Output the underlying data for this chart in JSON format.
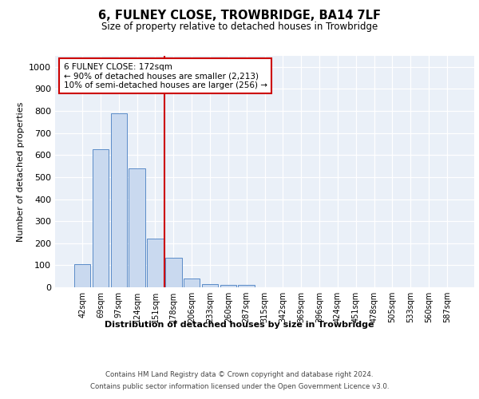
{
  "title": "6, FULNEY CLOSE, TROWBRIDGE, BA14 7LF",
  "subtitle": "Size of property relative to detached houses in Trowbridge",
  "xlabel": "Distribution of detached houses by size in Trowbridge",
  "ylabel": "Number of detached properties",
  "categories": [
    "42sqm",
    "69sqm",
    "97sqm",
    "124sqm",
    "151sqm",
    "178sqm",
    "206sqm",
    "233sqm",
    "260sqm",
    "287sqm",
    "315sqm",
    "342sqm",
    "369sqm",
    "396sqm",
    "424sqm",
    "451sqm",
    "478sqm",
    "505sqm",
    "533sqm",
    "560sqm",
    "587sqm"
  ],
  "values": [
    105,
    625,
    790,
    540,
    220,
    135,
    40,
    15,
    10,
    10,
    0,
    0,
    0,
    0,
    0,
    0,
    0,
    0,
    0,
    0,
    0
  ],
  "bar_color": "#c9d9ef",
  "bar_edge_color": "#5b8cc8",
  "vline_color": "#cc0000",
  "annotation_text": "6 FULNEY CLOSE: 172sqm\n← 90% of detached houses are smaller (2,213)\n10% of semi-detached houses are larger (256) →",
  "annotation_box_color": "#ffffff",
  "annotation_box_edge": "#cc0000",
  "ylim": [
    0,
    1050
  ],
  "yticks": [
    0,
    100,
    200,
    300,
    400,
    500,
    600,
    700,
    800,
    900,
    1000
  ],
  "footer_line1": "Contains HM Land Registry data © Crown copyright and database right 2024.",
  "footer_line2": "Contains public sector information licensed under the Open Government Licence v3.0.",
  "bg_color": "#eaf0f8",
  "fig_bg_color": "#ffffff"
}
